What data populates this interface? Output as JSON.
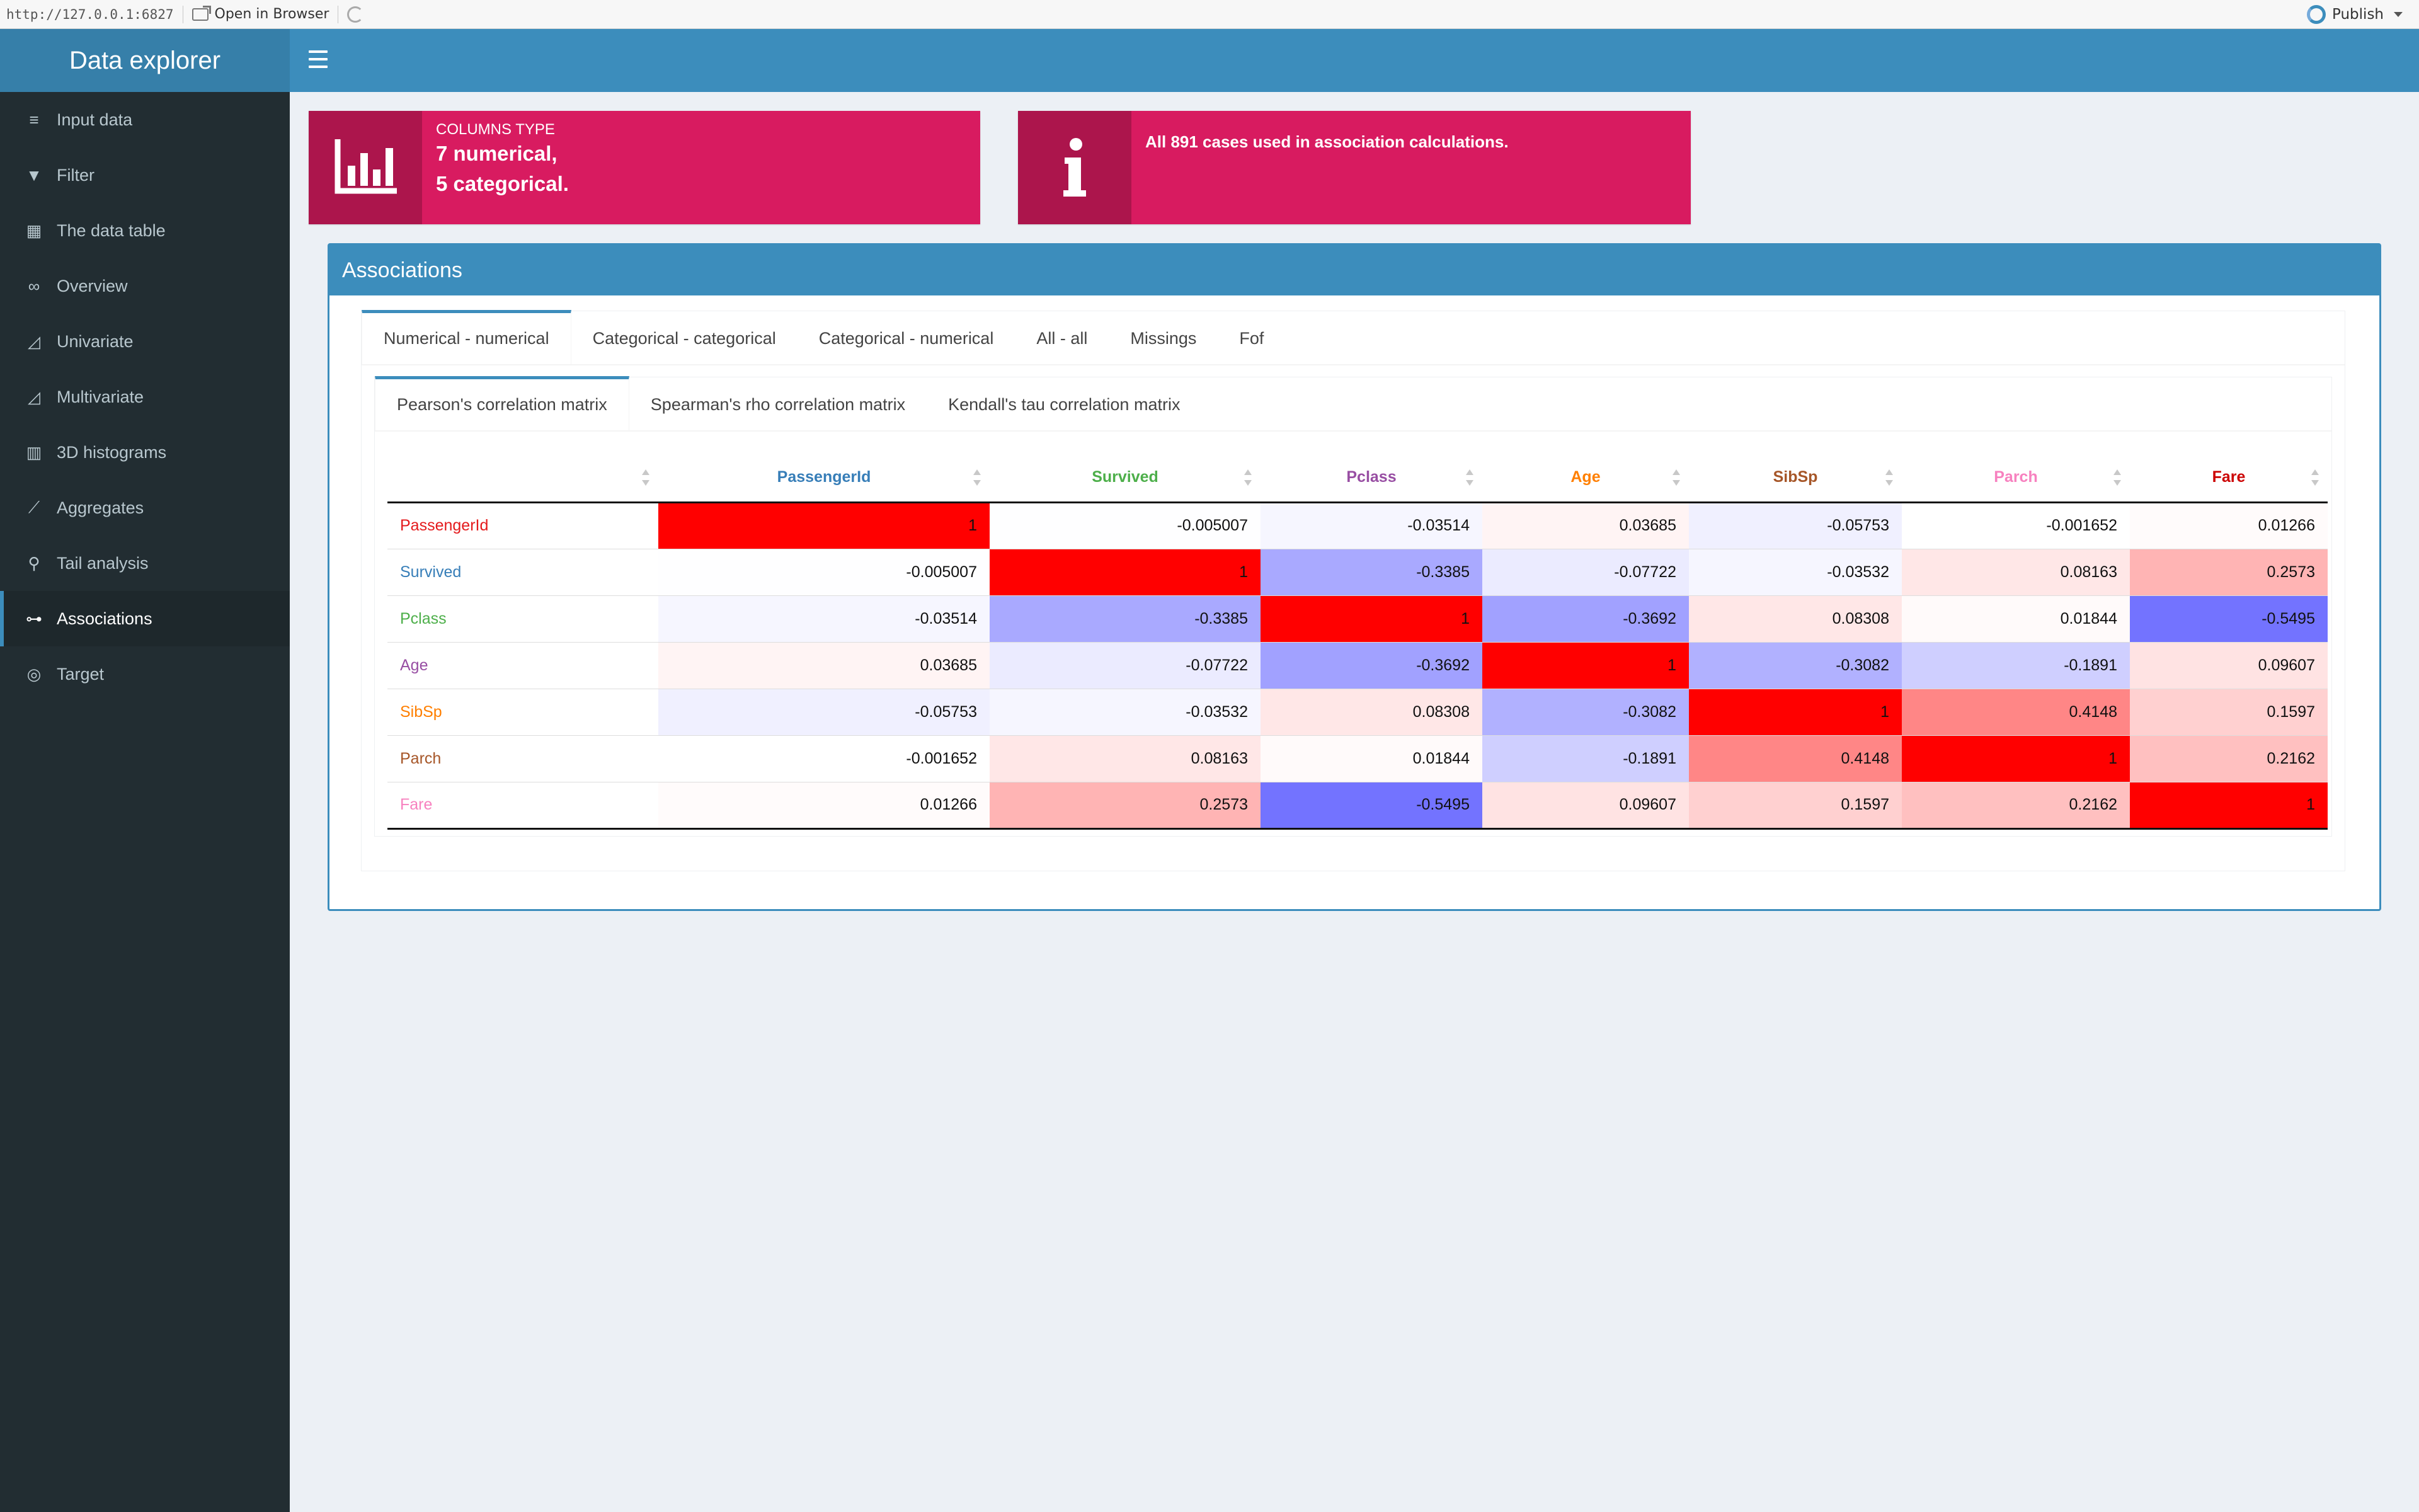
{
  "viewer": {
    "url": "http://127.0.0.1:6827",
    "open_in_browser": "Open in Browser",
    "publish": "Publish"
  },
  "app": {
    "title": "Data explorer"
  },
  "sidebar": {
    "items": [
      {
        "label": "Input data",
        "icon": "database-icon"
      },
      {
        "label": "Filter",
        "icon": "filter-icon"
      },
      {
        "label": "The data table",
        "icon": "table-icon"
      },
      {
        "label": "Overview",
        "icon": "binoculars-icon"
      },
      {
        "label": "Univariate",
        "icon": "area-chart-icon"
      },
      {
        "label": "Multivariate",
        "icon": "area-chart-icon"
      },
      {
        "label": "3D histograms",
        "icon": "bar-chart-icon"
      },
      {
        "label": "Aggregates",
        "icon": "line-chart-icon"
      },
      {
        "label": "Tail analysis",
        "icon": "search-icon"
      },
      {
        "label": "Associations",
        "icon": "sitemap-icon"
      },
      {
        "label": "Target",
        "icon": "bullseye-icon"
      }
    ],
    "active_index": 9
  },
  "infobox_columns": {
    "label": "COLUMNS TYPE",
    "line1": "7 numerical,",
    "line2": "5 categorical.",
    "icon": "bar-chart-icon"
  },
  "infobox_cases": {
    "text": "All 891 cases used in association calculations.",
    "icon": "info-icon"
  },
  "box": {
    "title": "Associations"
  },
  "tabs": [
    "Numerical - numerical",
    "Categorical - categorical",
    "Categorical - numerical",
    "All - all",
    "Missings",
    "Fof"
  ],
  "active_tab": 0,
  "subtabs": [
    "Pearson's correlation matrix",
    "Spearman's rho correlation matrix",
    "Kendall's tau correlation matrix"
  ],
  "active_subtab": 0,
  "matrix": {
    "variables": [
      "PassengerId",
      "Survived",
      "Pclass",
      "Age",
      "SibSp",
      "Parch",
      "Fare"
    ],
    "variable_colors": [
      "#e41a1c",
      "#377eb8",
      "#4daf4a",
      "#984ea3",
      "#ff7f00",
      "#a65628",
      "#f781bf"
    ],
    "header_colors": [
      "#377eb8",
      "#4daf4a",
      "#984ea3",
      "#ff7f00",
      "#a65628",
      "#f781bf",
      "#cc0000"
    ],
    "rows": [
      [
        "1",
        "-0.005007",
        "-0.03514",
        "0.03685",
        "-0.05753",
        "-0.001652",
        "0.01266"
      ],
      [
        "-0.005007",
        "1",
        "-0.3385",
        "-0.07722",
        "-0.03532",
        "0.08163",
        "0.2573"
      ],
      [
        "-0.03514",
        "-0.3385",
        "1",
        "-0.3692",
        "0.08308",
        "0.01844",
        "-0.5495"
      ],
      [
        "0.03685",
        "-0.07722",
        "-0.3692",
        "1",
        "-0.3082",
        "-0.1891",
        "0.09607"
      ],
      [
        "-0.05753",
        "-0.03532",
        "0.08308",
        "-0.3082",
        "1",
        "0.4148",
        "0.1597"
      ],
      [
        "-0.001652",
        "0.08163",
        "0.01844",
        "-0.1891",
        "0.4148",
        "1",
        "0.2162"
      ],
      [
        "0.01266",
        "0.2573",
        "-0.5495",
        "0.09607",
        "0.1597",
        "0.2162",
        "1"
      ]
    ]
  }
}
